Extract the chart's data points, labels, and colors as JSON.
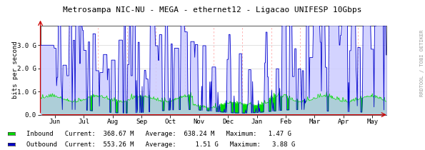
{
  "title": "Metrosampa NIC-NU - MEGA - ethernet12 - Ligacao UNIFESP 10Gbps",
  "ylabel": "bits per second",
  "sidebar_text": "RRDTOOL / TOBI OETIKER",
  "x_tick_labels": [
    "Jun",
    "Jul",
    "Aug",
    "Sep",
    "Oct",
    "Nov",
    "Dec",
    "Jan",
    "Feb",
    "Mar",
    "Apr",
    "May"
  ],
  "y_tick_labels": [
    "0.0",
    "1.0 G",
    "2.0 G",
    "3.0 G"
  ],
  "y_tick_values": [
    0.0,
    1.0,
    2.0,
    3.0
  ],
  "ylim": [
    0,
    3.85
  ],
  "background_color": "#ffffff",
  "plot_bg_color": "#ffffff",
  "grid_color": "#ffaaaa",
  "inbound_color": "#00dd00",
  "inbound_fill": "#00dd00",
  "outbound_color": "#0000cc",
  "outbound_fill": "#ccccff",
  "arrow_color": "#cc0000",
  "legend_inbound_label": "Inbound",
  "legend_outbound_label": "Outbound",
  "legend_current_inbound": "368.67 M",
  "legend_average_inbound": "638.24 M",
  "legend_maximum_inbound": "1.47 G",
  "legend_current_outbound": "553.26 M",
  "legend_average_outbound": "1.51 G",
  "legend_maximum_outbound": "3.88 G",
  "n_points": 600,
  "seed": 7
}
